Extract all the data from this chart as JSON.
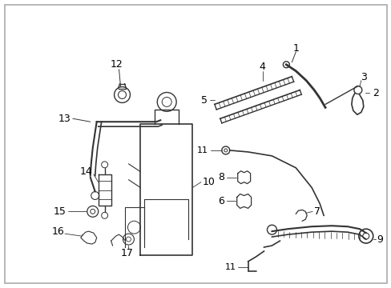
{
  "background_color": "#ffffff",
  "border_color": "#aaaaaa",
  "line_color": "#333333",
  "text_color": "#000000",
  "fig_width": 4.89,
  "fig_height": 3.6,
  "dpi": 100
}
